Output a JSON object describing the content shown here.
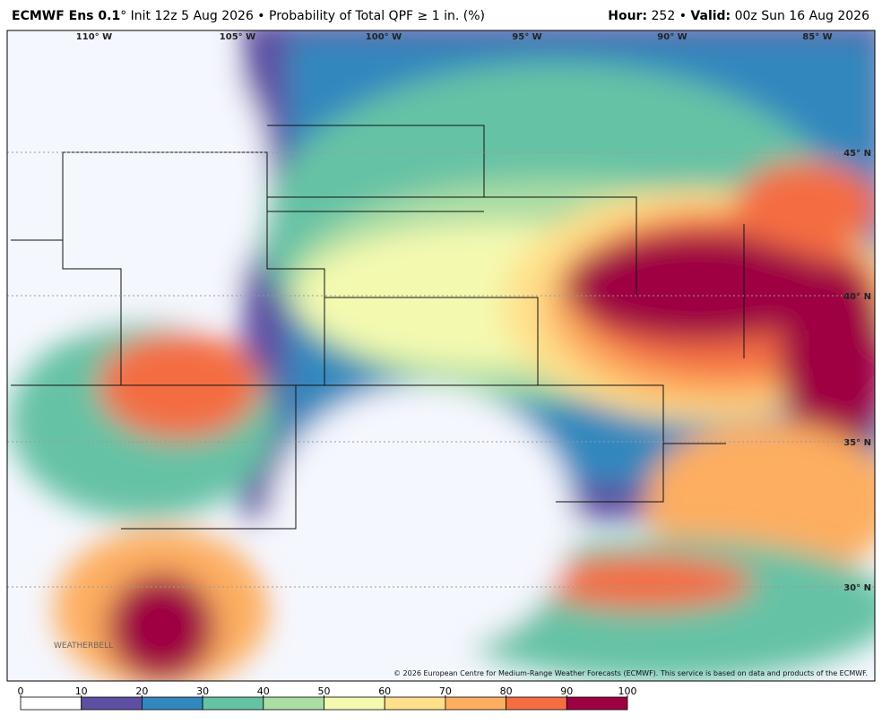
{
  "header": {
    "model": "ECMWF Ens 0.1",
    "title_rest": "° Init 12z 5 Aug 2026 • Probability of Total QPF ≥ 1 in. (%)",
    "hour_label": "Hour:",
    "hour": "252",
    "separator": "•",
    "valid_label": "Valid:",
    "valid": "00z Sun 16 Aug 2026"
  },
  "map": {
    "longitude_labels": [
      "110° W",
      "105° W",
      "100° W",
      "95° W",
      "90° W",
      "85° W"
    ],
    "latitude_labels": [
      "45° N",
      "40° N",
      "35° N",
      "30° N"
    ],
    "copyright": "© 2026 European Centre for Medium-Range Weather Forecasts (ECMWF). This service is based on data and products of the ECMWF.",
    "logo": "WEATHERBELL"
  },
  "colorbar": {
    "ticks": [
      0,
      10,
      20,
      30,
      40,
      50,
      60,
      70,
      80,
      90,
      100
    ],
    "colors": [
      "#ffffff",
      "#5e4fa2",
      "#3288bd",
      "#66c2a5",
      "#abdda4",
      "#f4f9b0",
      "#fee08b",
      "#fdae61",
      "#f46d43",
      "#9e0142"
    ]
  }
}
